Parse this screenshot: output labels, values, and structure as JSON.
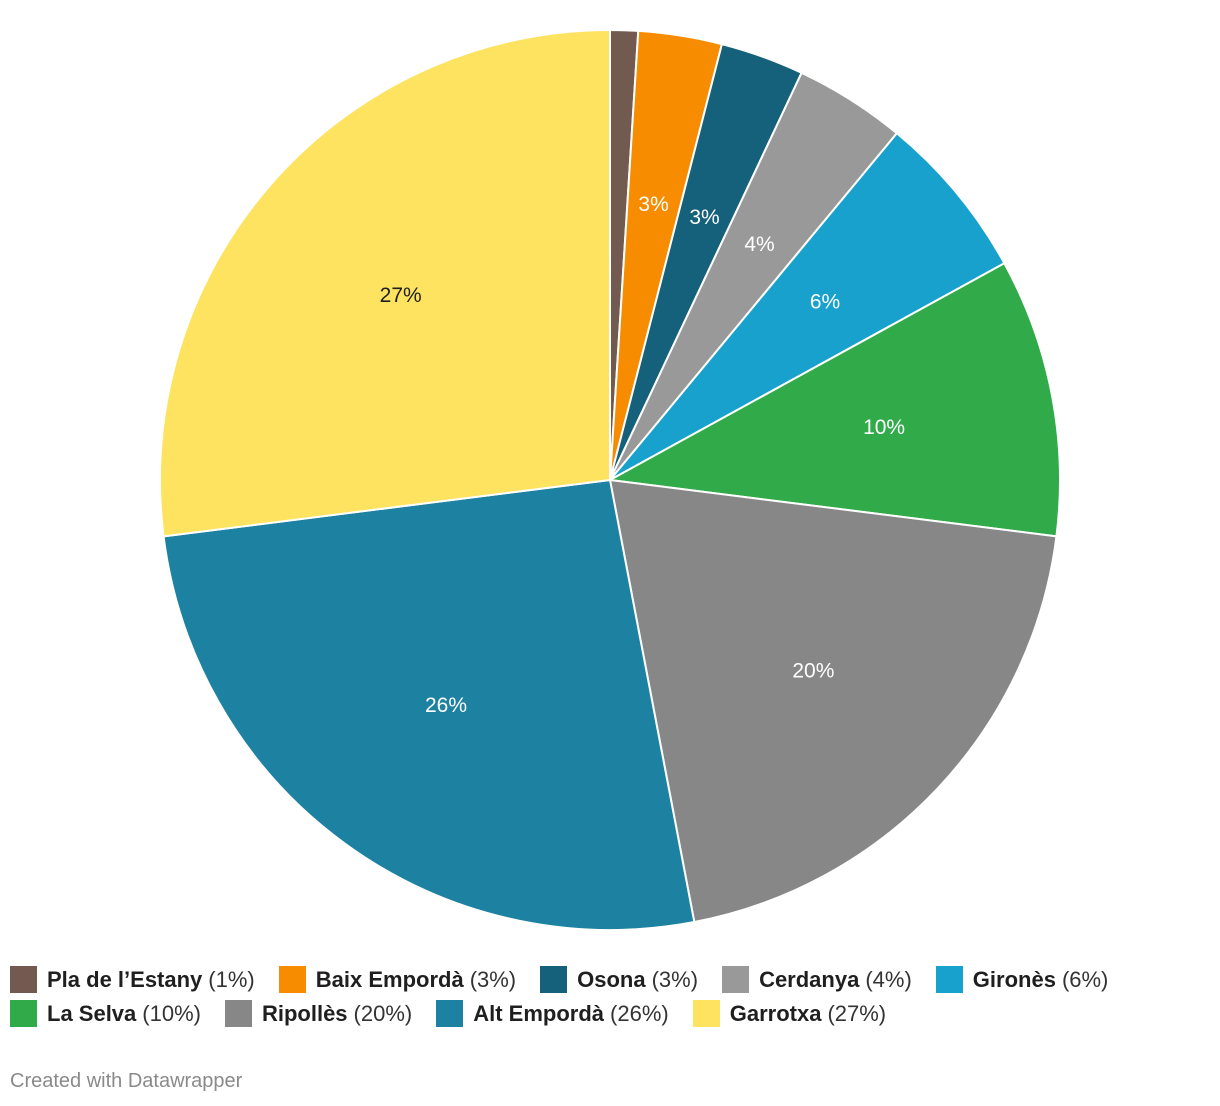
{
  "chart_data": {
    "type": "pie",
    "categories": [
      "Pla de l’Estany",
      "Baix Empordà",
      "Osona",
      "Cerdanya",
      "Gironès",
      "La Selva",
      "Ripollès",
      "Alt Empordà",
      "Garrotxa"
    ],
    "values": [
      1,
      3,
      3,
      4,
      6,
      10,
      20,
      26,
      27
    ],
    "slice_labels": [
      "",
      "3%",
      "3%",
      "4%",
      "6%",
      "10%",
      "20%",
      "26%",
      "27%"
    ],
    "colors": [
      "#735a50",
      "#f78c00",
      "#15607a",
      "#999999",
      "#18a1cd",
      "#31ab4a",
      "#878787",
      "#1d81a2",
      "#fee360"
    ],
    "label_colors": [
      "#ffffff",
      "#ffffff",
      "#ffffff",
      "#ffffff",
      "#ffffff",
      "#ffffff",
      "#ffffff",
      "#ffffff",
      "#1f1f1f"
    ],
    "legend_placement": "bottom"
  },
  "legend": [
    {
      "name": "Pla de l’Estany",
      "pct": "(1%)"
    },
    {
      "name": "Baix Empordà",
      "pct": "(3%)"
    },
    {
      "name": "Osona",
      "pct": "(3%)"
    },
    {
      "name": "Cerdanya",
      "pct": "(4%)"
    },
    {
      "name": "Gironès",
      "pct": "(6%)"
    },
    {
      "name": "La Selva",
      "pct": "(10%)"
    },
    {
      "name": "Ripollès",
      "pct": "(20%)"
    },
    {
      "name": "Alt Empordà",
      "pct": "(26%)"
    },
    {
      "name": "Garrotxa",
      "pct": "(27%)"
    }
  ],
  "footer": {
    "credit": "Created with Datawrapper"
  }
}
